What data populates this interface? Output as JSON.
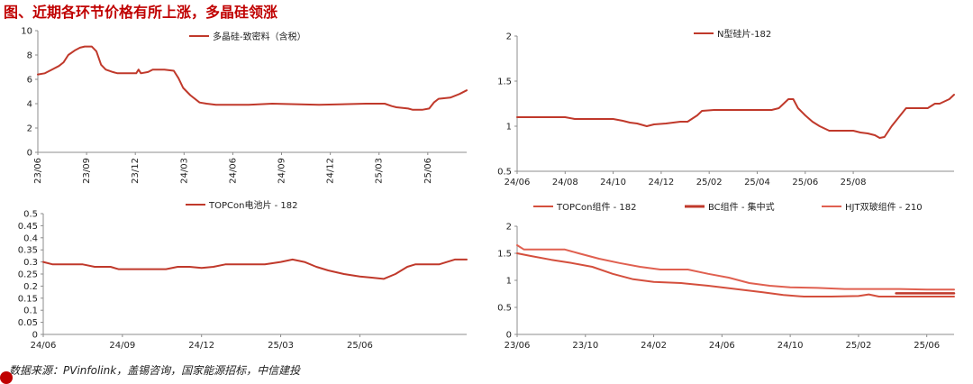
{
  "header": {
    "title": "图、近期各环节价格有所上涨，多晶硅领涨"
  },
  "footer": {
    "source": "数据来源：PVinfolink，盖锡咨询，国家能源招标，中信建投"
  },
  "colors": {
    "main": "#c0392b",
    "light": "#e06050",
    "title": "#c00000",
    "axis": "#8c8c8c"
  },
  "chart_data": [
    {
      "id": "polysilicon",
      "type": "line",
      "x_ticks": [
        "23/06",
        "23/09",
        "23/12",
        "24/03",
        "24/06",
        "24/09",
        "24/12",
        "25/03",
        "25/06"
      ],
      "y_ticks": [
        "0",
        "2",
        "4",
        "6",
        "8",
        "10"
      ],
      "ylim": [
        0,
        10
      ],
      "series": [
        {
          "name": "多晶硅-致密料（含税）",
          "color": "#c0392b",
          "points": [
            [
              0,
              6.4
            ],
            [
              0.15,
              6.5
            ],
            [
              0.3,
              6.8
            ],
            [
              0.45,
              7.1
            ],
            [
              0.55,
              7.4
            ],
            [
              0.65,
              8.0
            ],
            [
              0.8,
              8.4
            ],
            [
              0.9,
              8.6
            ],
            [
              1.0,
              8.7
            ],
            [
              1.15,
              8.7
            ],
            [
              1.25,
              8.3
            ],
            [
              1.35,
              7.2
            ],
            [
              1.45,
              6.8
            ],
            [
              1.6,
              6.6
            ],
            [
              1.7,
              6.5
            ],
            [
              1.9,
              6.5
            ],
            [
              2.1,
              6.5
            ],
            [
              2.15,
              6.8
            ],
            [
              2.2,
              6.5
            ],
            [
              2.35,
              6.6
            ],
            [
              2.45,
              6.8
            ],
            [
              2.7,
              6.8
            ],
            [
              2.9,
              6.7
            ],
            [
              3.0,
              6.1
            ],
            [
              3.1,
              5.3
            ],
            [
              3.25,
              4.7
            ],
            [
              3.45,
              4.1
            ],
            [
              3.6,
              4.0
            ],
            [
              3.8,
              3.9
            ],
            [
              4.3,
              3.9
            ],
            [
              4.5,
              3.9
            ],
            [
              5.0,
              4.0
            ],
            [
              6.0,
              3.9
            ],
            [
              7.0,
              4.0
            ],
            [
              7.4,
              4.0
            ],
            [
              7.55,
              3.8
            ],
            [
              7.65,
              3.7
            ],
            [
              7.9,
              3.6
            ],
            [
              8.0,
              3.5
            ],
            [
              8.2,
              3.5
            ],
            [
              8.35,
              3.6
            ],
            [
              8.45,
              4.1
            ],
            [
              8.55,
              4.4
            ],
            [
              8.8,
              4.5
            ],
            [
              9.0,
              4.8
            ],
            [
              9.15,
              5.1
            ]
          ]
        }
      ]
    },
    {
      "id": "n-wafer",
      "type": "line",
      "x_ticks": [
        "24/06",
        "24/08",
        "24/10",
        "24/12",
        "25/02",
        "25/04",
        "25/06",
        "25/08"
      ],
      "y_ticks": [
        "0.5",
        "1",
        "1.5",
        "2"
      ],
      "ylim": [
        0.5,
        2
      ],
      "series": [
        {
          "name": "N型硅片-182",
          "color": "#c0392b",
          "points": [
            [
              0,
              1.1
            ],
            [
              0.5,
              1.1
            ],
            [
              1.0,
              1.1
            ],
            [
              1.2,
              1.08
            ],
            [
              1.6,
              1.08
            ],
            [
              2.0,
              1.08
            ],
            [
              2.2,
              1.06
            ],
            [
              2.35,
              1.04
            ],
            [
              2.5,
              1.03
            ],
            [
              2.7,
              1.0
            ],
            [
              2.85,
              1.02
            ],
            [
              3.1,
              1.03
            ],
            [
              3.4,
              1.05
            ],
            [
              3.55,
              1.05
            ],
            [
              3.75,
              1.12
            ],
            [
              3.85,
              1.17
            ],
            [
              4.1,
              1.18
            ],
            [
              4.7,
              1.18
            ],
            [
              5.3,
              1.18
            ],
            [
              5.45,
              1.2
            ],
            [
              5.65,
              1.3
            ],
            [
              5.75,
              1.3
            ],
            [
              5.85,
              1.2
            ],
            [
              6.0,
              1.12
            ],
            [
              6.15,
              1.05
            ],
            [
              6.3,
              1.0
            ],
            [
              6.5,
              0.95
            ],
            [
              6.8,
              0.95
            ],
            [
              7.0,
              0.95
            ],
            [
              7.15,
              0.93
            ],
            [
              7.3,
              0.92
            ],
            [
              7.45,
              0.9
            ],
            [
              7.55,
              0.87
            ],
            [
              7.65,
              0.88
            ],
            [
              7.8,
              1.0
            ],
            [
              7.95,
              1.1
            ],
            [
              8.1,
              1.2
            ],
            [
              8.3,
              1.2
            ],
            [
              8.55,
              1.2
            ],
            [
              8.7,
              1.25
            ],
            [
              8.8,
              1.25
            ],
            [
              9.0,
              1.3
            ],
            [
              9.1,
              1.35
            ]
          ]
        }
      ]
    },
    {
      "id": "topcon-cell",
      "type": "line",
      "x_ticks": [
        "24/06",
        "24/09",
        "24/12",
        "25/03",
        "25/06"
      ],
      "y_ticks": [
        "0",
        "0.05",
        "0.1",
        "0.15",
        "0.2",
        "0.25",
        "0.3",
        "0.35",
        "0.4",
        "0.45",
        "0.5"
      ],
      "ylim": [
        0,
        0.5
      ],
      "series": [
        {
          "name": "TOPCon电池片 - 182",
          "color": "#c0392b",
          "points": [
            [
              0,
              0.3
            ],
            [
              0.12,
              0.29
            ],
            [
              0.3,
              0.29
            ],
            [
              0.5,
              0.29
            ],
            [
              0.65,
              0.28
            ],
            [
              0.85,
              0.28
            ],
            [
              0.95,
              0.27
            ],
            [
              1.2,
              0.27
            ],
            [
              1.55,
              0.27
            ],
            [
              1.7,
              0.28
            ],
            [
              1.85,
              0.28
            ],
            [
              2.0,
              0.275
            ],
            [
              2.15,
              0.28
            ],
            [
              2.3,
              0.29
            ],
            [
              2.5,
              0.29
            ],
            [
              2.8,
              0.29
            ],
            [
              3.0,
              0.3
            ],
            [
              3.15,
              0.31
            ],
            [
              3.3,
              0.3
            ],
            [
              3.45,
              0.28
            ],
            [
              3.6,
              0.265
            ],
            [
              3.8,
              0.25
            ],
            [
              4.0,
              0.24
            ],
            [
              4.15,
              0.235
            ],
            [
              4.3,
              0.23
            ],
            [
              4.45,
              0.25
            ],
            [
              4.6,
              0.28
            ],
            [
              4.7,
              0.29
            ],
            [
              5.0,
              0.29
            ],
            [
              5.2,
              0.31
            ],
            [
              5.35,
              0.31
            ]
          ]
        }
      ]
    },
    {
      "id": "modules",
      "type": "line",
      "x_ticks": [
        "23/06",
        "23/10",
        "24/02",
        "24/06",
        "24/10",
        "25/02",
        "25/06"
      ],
      "y_ticks": [
        "0",
        "0.5",
        "1",
        "1.5",
        "2"
      ],
      "ylim": [
        0,
        2
      ],
      "series": [
        {
          "name": "TOPCon组件 - 182",
          "color": "#d44f3d",
          "points": [
            [
              0,
              1.5
            ],
            [
              0.2,
              1.45
            ],
            [
              0.5,
              1.38
            ],
            [
              0.8,
              1.32
            ],
            [
              1.1,
              1.25
            ],
            [
              1.4,
              1.12
            ],
            [
              1.7,
              1.02
            ],
            [
              2.0,
              0.97
            ],
            [
              2.4,
              0.95
            ],
            [
              2.8,
              0.9
            ],
            [
              3.2,
              0.84
            ],
            [
              3.6,
              0.78
            ],
            [
              3.9,
              0.73
            ],
            [
              4.2,
              0.7
            ],
            [
              4.6,
              0.7
            ],
            [
              5.0,
              0.71
            ],
            [
              5.15,
              0.74
            ],
            [
              5.3,
              0.7
            ],
            [
              5.6,
              0.7
            ],
            [
              6.0,
              0.7
            ],
            [
              6.4,
              0.7
            ]
          ]
        },
        {
          "name": "BC组件 - 集中式",
          "color": "#c0392b",
          "points": [
            [
              5.55,
              0.76
            ],
            [
              5.9,
              0.76
            ],
            [
              6.4,
              0.76
            ]
          ]
        },
        {
          "name": "HJT双玻组件 - 210",
          "color": "#e06050",
          "points": [
            [
              0,
              1.65
            ],
            [
              0.1,
              1.57
            ],
            [
              0.4,
              1.57
            ],
            [
              0.7,
              1.57
            ],
            [
              0.9,
              1.5
            ],
            [
              1.2,
              1.4
            ],
            [
              1.5,
              1.32
            ],
            [
              1.8,
              1.25
            ],
            [
              2.1,
              1.2
            ],
            [
              2.5,
              1.2
            ],
            [
              2.8,
              1.12
            ],
            [
              3.1,
              1.05
            ],
            [
              3.4,
              0.95
            ],
            [
              3.7,
              0.9
            ],
            [
              4.0,
              0.87
            ],
            [
              4.4,
              0.86
            ],
            [
              4.8,
              0.84
            ],
            [
              5.2,
              0.84
            ],
            [
              5.6,
              0.84
            ],
            [
              6.0,
              0.83
            ],
            [
              6.4,
              0.83
            ]
          ]
        }
      ]
    }
  ]
}
